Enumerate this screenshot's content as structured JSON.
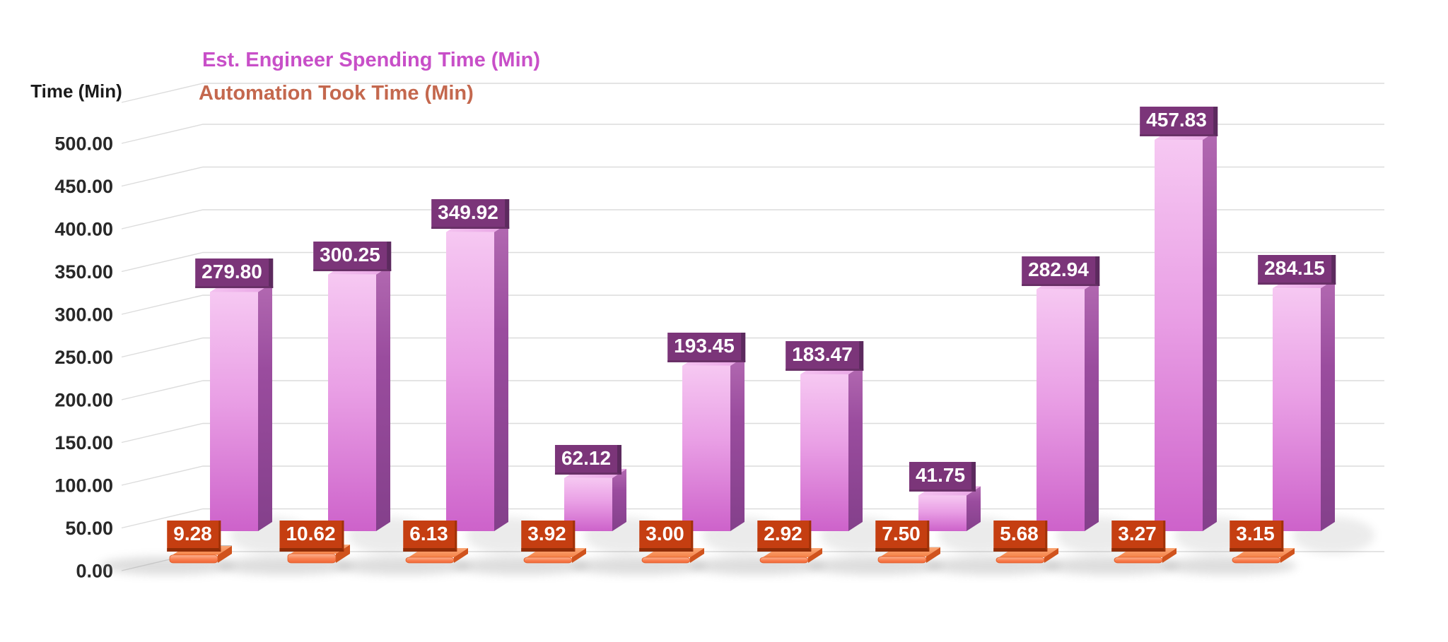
{
  "chart_data": {
    "type": "bar",
    "variant": "3d-column",
    "title": "",
    "y_axis_title": "Time (Min)",
    "y_ticks": [
      "0.00",
      "50.00",
      "100.00",
      "150.00",
      "200.00",
      "250.00",
      "300.00",
      "350.00",
      "400.00",
      "450.00",
      "500.00"
    ],
    "ylim": [
      0,
      500
    ],
    "grid": true,
    "legend_position": "top-left",
    "categories_shown": false,
    "series": [
      {
        "name": "Est. Engineer Spending Time (Min)",
        "color": "#c84fc8",
        "label_box_color": "#7b3579",
        "values": [
          279.8,
          300.25,
          349.92,
          62.12,
          193.45,
          183.47,
          41.75,
          282.94,
          457.83,
          284.15
        ],
        "labels": [
          "279.80",
          "300.25",
          "349.92",
          "62.12",
          "193.45",
          "183.47",
          "41.75",
          "282.94",
          "457.83",
          "284.15"
        ]
      },
      {
        "name": "Automation Took Time (Min)",
        "color": "#c4684e",
        "label_box_color": "#c53e11",
        "values": [
          9.28,
          10.62,
          6.13,
          3.92,
          3.0,
          2.92,
          7.5,
          5.68,
          3.27,
          3.15
        ],
        "labels": [
          "9.28",
          "10.62",
          "6.13",
          "3.92",
          "3.00",
          "2.92",
          "7.50",
          "5.68",
          "3.27",
          "3.15"
        ]
      }
    ]
  }
}
